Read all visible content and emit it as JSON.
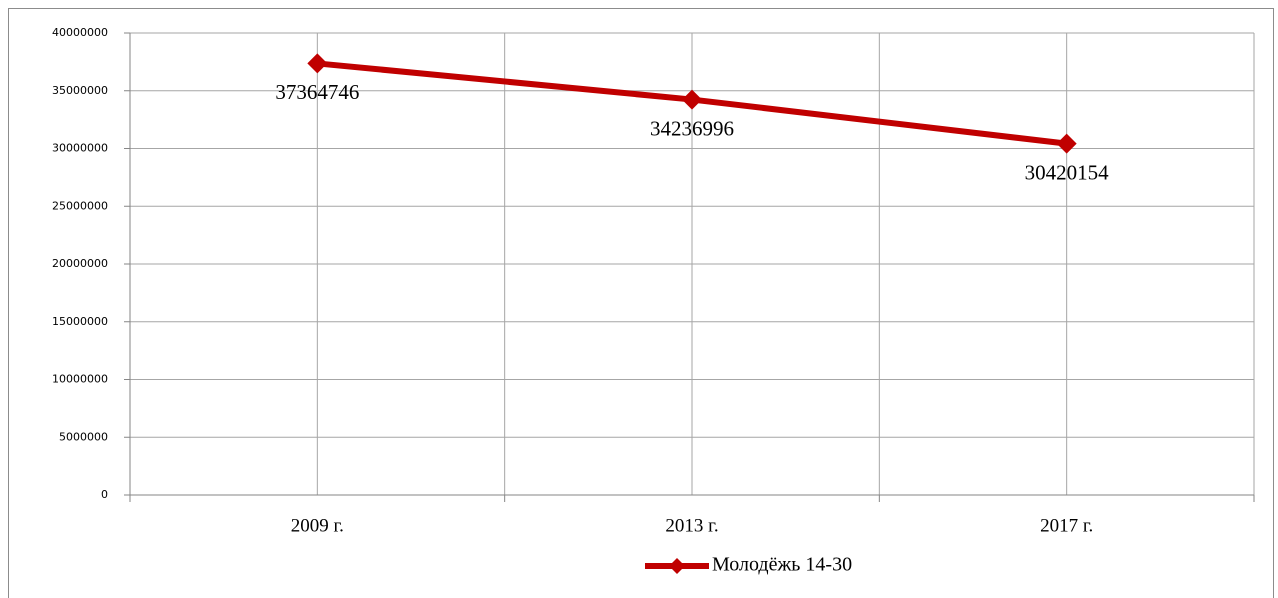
{
  "chart_data": {
    "type": "line",
    "categories": [
      "2009 г.",
      "2013 г.",
      "2017 г."
    ],
    "series": [
      {
        "name": "Молодёжь 14-30",
        "color": "#c00000",
        "values": [
          37364746,
          34236996,
          30420154
        ]
      }
    ],
    "ylim": [
      0,
      40000000
    ],
    "yticks": [
      0,
      5000000,
      10000000,
      15000000,
      20000000,
      25000000,
      30000000,
      35000000,
      40000000
    ],
    "grid": true,
    "legend": "bottom",
    "data_labels": true
  }
}
